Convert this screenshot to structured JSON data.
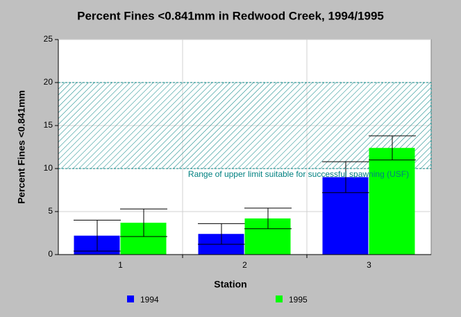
{
  "chart_data": {
    "type": "bar",
    "title": "Percent Fines <0.841mm in Redwood Creek, 1994/1995",
    "x_label": "Station",
    "y_label": "Percent Fines <0.841mm",
    "categories": [
      "1",
      "2",
      "3"
    ],
    "series": [
      {
        "name": "1994",
        "color": "#0000ff",
        "values": [
          2.2,
          2.4,
          9.0
        ],
        "errors": [
          1.8,
          1.2,
          1.8
        ]
      },
      {
        "name": "1995",
        "color": "#00ff00",
        "values": [
          3.7,
          4.2,
          12.4
        ],
        "errors": [
          1.6,
          1.2,
          1.4
        ]
      }
    ],
    "band": {
      "from": 10,
      "to": 20,
      "color": "#008080",
      "label": "Range of upper limit suitable for successful spawning (USF)"
    },
    "ylim": [
      0,
      25
    ],
    "yticks": [
      0,
      5,
      10,
      15,
      20,
      25
    ],
    "grid": true
  }
}
